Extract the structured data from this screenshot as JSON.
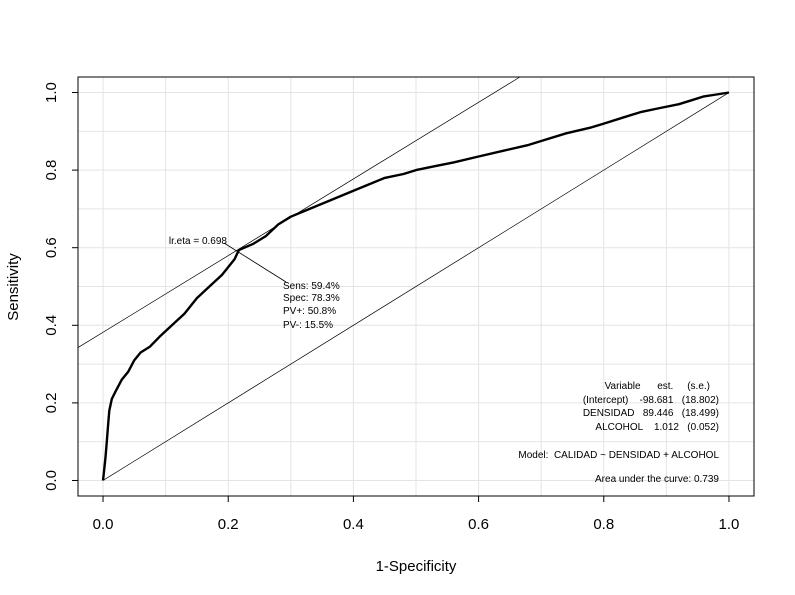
{
  "chart_data": {
    "type": "line",
    "title": "",
    "xlabel": "1-Specificity",
    "ylabel": "Sensitivity",
    "xlim": [
      -0.04,
      1.04
    ],
    "ylim": [
      -0.04,
      1.04
    ],
    "x_ticks": [
      "0.0",
      "0.2",
      "0.4",
      "0.6",
      "0.8",
      "1.0"
    ],
    "y_ticks": [
      "0.0",
      "0.2",
      "0.4",
      "0.6",
      "0.8",
      "1.0"
    ],
    "grid": true,
    "series": [
      {
        "values": [
          [
            0.0,
            0.0
          ],
          [
            0.002,
            0.03
          ],
          [
            0.004,
            0.06
          ],
          [
            0.006,
            0.1
          ],
          [
            0.008,
            0.14
          ],
          [
            0.01,
            0.18
          ],
          [
            0.014,
            0.21
          ],
          [
            0.02,
            0.23
          ],
          [
            0.03,
            0.26
          ],
          [
            0.04,
            0.28
          ],
          [
            0.05,
            0.31
          ],
          [
            0.06,
            0.33
          ],
          [
            0.075,
            0.345
          ],
          [
            0.09,
            0.37
          ],
          [
            0.11,
            0.4
          ],
          [
            0.13,
            0.43
          ],
          [
            0.15,
            0.47
          ],
          [
            0.17,
            0.5
          ],
          [
            0.19,
            0.53
          ],
          [
            0.21,
            0.57
          ],
          [
            0.217,
            0.594
          ],
          [
            0.24,
            0.61
          ],
          [
            0.26,
            0.63
          ],
          [
            0.28,
            0.66
          ],
          [
            0.3,
            0.68
          ],
          [
            0.33,
            0.7
          ],
          [
            0.36,
            0.72
          ],
          [
            0.39,
            0.74
          ],
          [
            0.42,
            0.76
          ],
          [
            0.45,
            0.78
          ],
          [
            0.48,
            0.79
          ],
          [
            0.5,
            0.8
          ],
          [
            0.53,
            0.81
          ],
          [
            0.56,
            0.82
          ],
          [
            0.6,
            0.835
          ],
          [
            0.64,
            0.85
          ],
          [
            0.68,
            0.865
          ],
          [
            0.7,
            0.875
          ],
          [
            0.74,
            0.895
          ],
          [
            0.78,
            0.91
          ],
          [
            0.8,
            0.92
          ],
          [
            0.83,
            0.935
          ],
          [
            0.86,
            0.95
          ],
          [
            0.89,
            0.96
          ],
          [
            0.92,
            0.97
          ],
          [
            0.94,
            0.98
          ],
          [
            0.96,
            0.99
          ],
          [
            0.98,
            0.995
          ],
          [
            1.0,
            1.0
          ]
        ]
      }
    ],
    "reference_lines": [
      {
        "from": [
          0,
          0
        ],
        "to": [
          1,
          1
        ]
      },
      {
        "from": [
          -0.04,
          0.3425
        ],
        "to": [
          0.666,
          1.04
        ]
      }
    ],
    "optimal_point": {
      "x": 0.217,
      "y": 0.594
    },
    "annotations": {
      "lr_eta": "lr.eta = 0.698",
      "cutoff_stats": [
        "Sens: 59.4%",
        "Spec: 78.3%",
        "PV+: 50.8%",
        "PV-: 15.5%"
      ],
      "model_table": [
        "Variable      est.     (s.e.)",
        "(Intercept)    -98.681   (18.802)",
        "DENSIDAD   89.446   (18.499)",
        "ALCOHOL    1.012   (0.052)"
      ],
      "model": "Model:  CALIDAD ~ DENSIDAD + ALCOHOL",
      "auc": "Area under the curve: 0.739"
    }
  }
}
